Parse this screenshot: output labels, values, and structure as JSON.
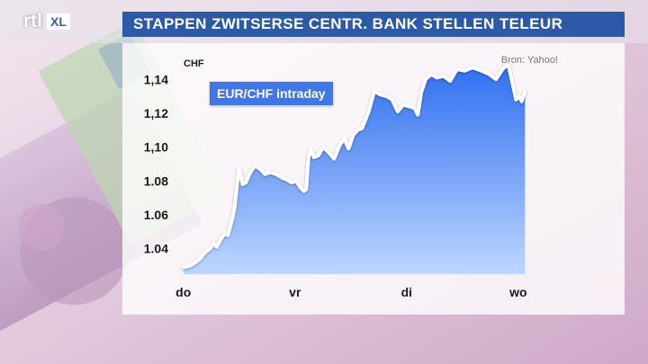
{
  "header": {
    "logo_text": "rtl",
    "logo_badge": "XL",
    "title": "STAPPEN ZWITSERSE CENTR. BANK STELLEN TELEUR"
  },
  "chart_data": {
    "type": "area",
    "title": "EUR/CHF intraday",
    "ylabel": "CHF",
    "source": "Bron: Yahoo!",
    "ylim": [
      1.025,
      1.155
    ],
    "y_ticks": [
      1.04,
      1.06,
      1.08,
      1.1,
      1.12,
      1.14
    ],
    "y_tick_labels": [
      "1.04",
      "1.06",
      "1.08",
      "1,10",
      "1,12",
      "1,14"
    ],
    "x_ticks": [
      0,
      1,
      2,
      3
    ],
    "x_tick_labels": [
      "do",
      "vr",
      "di",
      "wo"
    ],
    "xlim": [
      -0.03,
      3.42
    ],
    "series": [
      {
        "color": "#ffffff",
        "fill_top": "#2f6ff0",
        "fill_bottom": "#bcd6ff",
        "points": [
          [
            0.0,
            1.029
          ],
          [
            0.06,
            1.03
          ],
          [
            0.11,
            1.032
          ],
          [
            0.15,
            1.034
          ],
          [
            0.17,
            1.036
          ],
          [
            0.2,
            1.038
          ],
          [
            0.24,
            1.04
          ],
          [
            0.27,
            1.043
          ],
          [
            0.3,
            1.041
          ],
          [
            0.33,
            1.045
          ],
          [
            0.37,
            1.049
          ],
          [
            0.4,
            1.048
          ],
          [
            0.42,
            1.053
          ],
          [
            0.44,
            1.058
          ],
          [
            0.46,
            1.065
          ],
          [
            0.48,
            1.077
          ],
          [
            0.5,
            1.088
          ],
          [
            0.53,
            1.078
          ],
          [
            0.56,
            1.079
          ],
          [
            0.6,
            1.085
          ],
          [
            0.64,
            1.089
          ],
          [
            0.69,
            1.087
          ],
          [
            0.73,
            1.084
          ],
          [
            0.78,
            1.085
          ],
          [
            0.83,
            1.084
          ],
          [
            0.88,
            1.082
          ],
          [
            0.92,
            1.081
          ],
          [
            0.97,
            1.079
          ],
          [
            1.01,
            1.08
          ],
          [
            1.05,
            1.076
          ],
          [
            1.08,
            1.074
          ],
          [
            1.1,
            1.075
          ],
          [
            1.12,
            1.093
          ],
          [
            1.14,
            1.099
          ],
          [
            1.17,
            1.094
          ],
          [
            1.21,
            1.095
          ],
          [
            1.25,
            1.1
          ],
          [
            1.3,
            1.097
          ],
          [
            1.35,
            1.093
          ],
          [
            1.4,
            1.101
          ],
          [
            1.44,
            1.105
          ],
          [
            1.48,
            1.099
          ],
          [
            1.52,
            1.107
          ],
          [
            1.56,
            1.11
          ],
          [
            1.6,
            1.111
          ],
          [
            1.66,
            1.121
          ],
          [
            1.71,
            1.133
          ],
          [
            1.76,
            1.131
          ],
          [
            1.82,
            1.13
          ],
          [
            1.87,
            1.128
          ],
          [
            1.92,
            1.121
          ],
          [
            1.97,
            1.125
          ],
          [
            2.02,
            1.124
          ],
          [
            2.07,
            1.123
          ],
          [
            2.1,
            1.119
          ],
          [
            2.13,
            1.132
          ],
          [
            2.17,
            1.14
          ],
          [
            2.22,
            1.143
          ],
          [
            2.27,
            1.141
          ],
          [
            2.33,
            1.142
          ],
          [
            2.39,
            1.139
          ],
          [
            2.45,
            1.146
          ],
          [
            2.52,
            1.145
          ],
          [
            2.59,
            1.147
          ],
          [
            2.67,
            1.145
          ],
          [
            2.74,
            1.143
          ],
          [
            2.8,
            1.14
          ],
          [
            2.86,
            1.146
          ],
          [
            2.91,
            1.149
          ],
          [
            2.95,
            1.137
          ],
          [
            2.98,
            1.128
          ],
          [
            3.01,
            1.13
          ],
          [
            3.03,
            1.127
          ],
          [
            3.06,
            1.133
          ]
        ]
      }
    ]
  }
}
